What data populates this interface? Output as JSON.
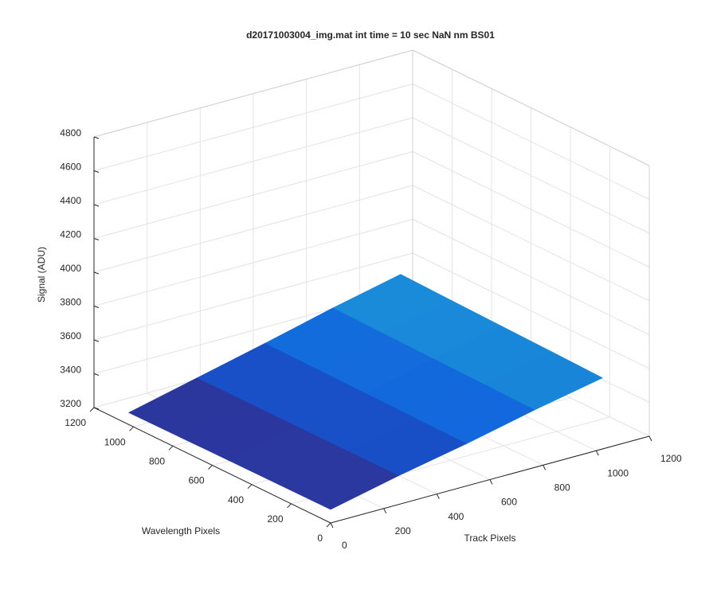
{
  "chart_data": {
    "type": "surface",
    "title": "d20171003004_img.mat int time = 10 sec  NaN nm BS01",
    "xlabel": "Track Pixels",
    "ylabel": "Wavelength Pixels",
    "zlabel": "Signal (ADU)",
    "xlim": [
      0,
      1200
    ],
    "xticks": [
      0,
      200,
      400,
      600,
      800,
      1000,
      1200
    ],
    "ylim": [
      0,
      1200
    ],
    "yticks": [
      0,
      200,
      400,
      600,
      800,
      1000,
      1200
    ],
    "zlim": [
      3200,
      4800
    ],
    "zticks": [
      3200,
      3400,
      3600,
      3800,
      4000,
      4200,
      4400,
      4600,
      4800
    ],
    "x": [
      0,
      256,
      512,
      768,
      1024
    ],
    "y": [
      0,
      256,
      512,
      768,
      1024
    ],
    "z": [
      [
        3280,
        3370,
        3450,
        3540,
        3620
      ],
      [
        3278,
        3368,
        3452,
        3545,
        3628
      ],
      [
        3276,
        3367,
        3455,
        3550,
        3635
      ],
      [
        3273,
        3366,
        3458,
        3555,
        3642
      ],
      [
        3270,
        3365,
        3460,
        3560,
        3650
      ]
    ],
    "colormap": [
      "#352a87",
      "#0f5cdd",
      "#1e9bd7"
    ],
    "grid": true
  }
}
